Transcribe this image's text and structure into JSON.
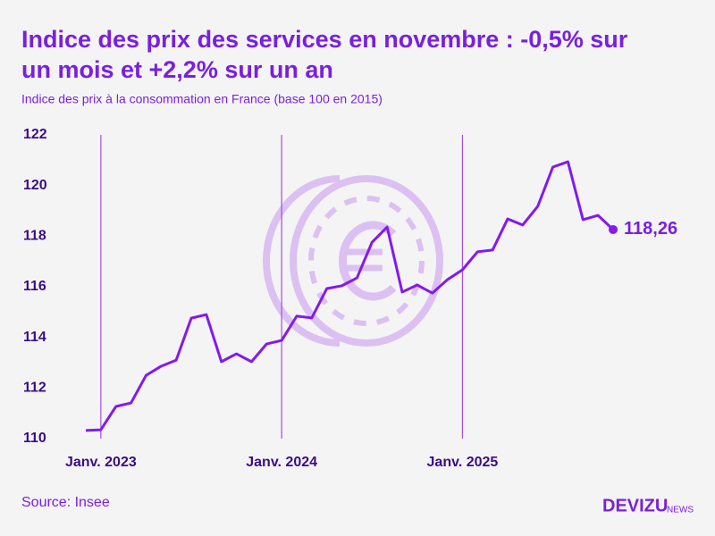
{
  "chart_data": {
    "type": "line",
    "title": [
      "Indice des prix des services en novembre : -0,5% sur",
      "un mois et +2,2% sur un an"
    ],
    "subtitle": "Indice des prix à la consommation en France (base 100 en 2015)",
    "source": "Source: Insee",
    "brand": [
      "DEVIZU",
      "NEWS"
    ],
    "categories": [
      null,
      "Janv. 2023",
      null,
      null,
      null,
      null,
      null,
      null,
      null,
      null,
      null,
      null,
      null,
      "Janv. 2024",
      null,
      null,
      null,
      null,
      null,
      null,
      null,
      null,
      null,
      null,
      null,
      "Janv. 2025",
      null,
      null,
      null,
      null,
      null,
      null,
      null,
      null,
      null,
      null
    ],
    "values": [
      110.32,
      110.35,
      111.27,
      111.41,
      112.5,
      112.86,
      113.1,
      114.76,
      114.9,
      113.04,
      113.35,
      113.04,
      113.74,
      113.88,
      114.84,
      114.77,
      115.93,
      116.04,
      116.35,
      117.76,
      118.36,
      115.79,
      116.07,
      115.75,
      116.28,
      116.67,
      117.38,
      117.45,
      118.68,
      118.44,
      119.18,
      120.73,
      120.94,
      118.65,
      118.82,
      118.26
    ],
    "last_value_label": "118,26",
    "color": "#8419f0",
    "ylim": [
      110,
      122
    ],
    "yticks": [
      110,
      112,
      114,
      116,
      118,
      120,
      122
    ],
    "grid": false
  }
}
